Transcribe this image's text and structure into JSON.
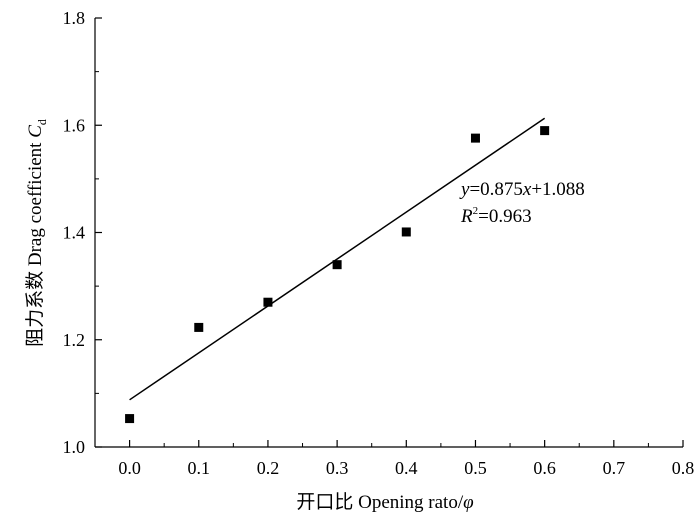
{
  "chart_data": {
    "type": "scatter",
    "xlabel_prefix": "开口比 Opening rato/",
    "xlabel_symbol": "φ",
    "ylabel_prefix": "阻力系数 Drag coefficient ",
    "ylabel_symbol": "C",
    "ylabel_subscript": "d",
    "xlim": [
      -0.05,
      0.8
    ],
    "ylim": [
      1.0,
      1.8
    ],
    "xticks": [
      "0.0",
      "0.1",
      "0.2",
      "0.3",
      "0.4",
      "0.5",
      "0.6",
      "0.7",
      "0.8"
    ],
    "yticks": [
      "1.0",
      "1.2",
      "1.4",
      "1.6",
      "1.8"
    ],
    "series": [
      {
        "x": [
          0.0,
          0.1,
          0.2,
          0.3,
          0.4,
          0.5,
          0.6
        ],
        "y": [
          1.053,
          1.223,
          1.27,
          1.34,
          1.401,
          1.576,
          1.59
        ]
      }
    ],
    "fit": {
      "slope": 0.875,
      "intercept": 1.088,
      "x_range": [
        0.0,
        0.6
      ],
      "equation_y": "y",
      "equation_eq": "=0.875",
      "equation_x": "x",
      "equation_rest": "+1.088",
      "r2_R": "R",
      "r2_sup": "2",
      "r2_value": "=0.963"
    }
  }
}
